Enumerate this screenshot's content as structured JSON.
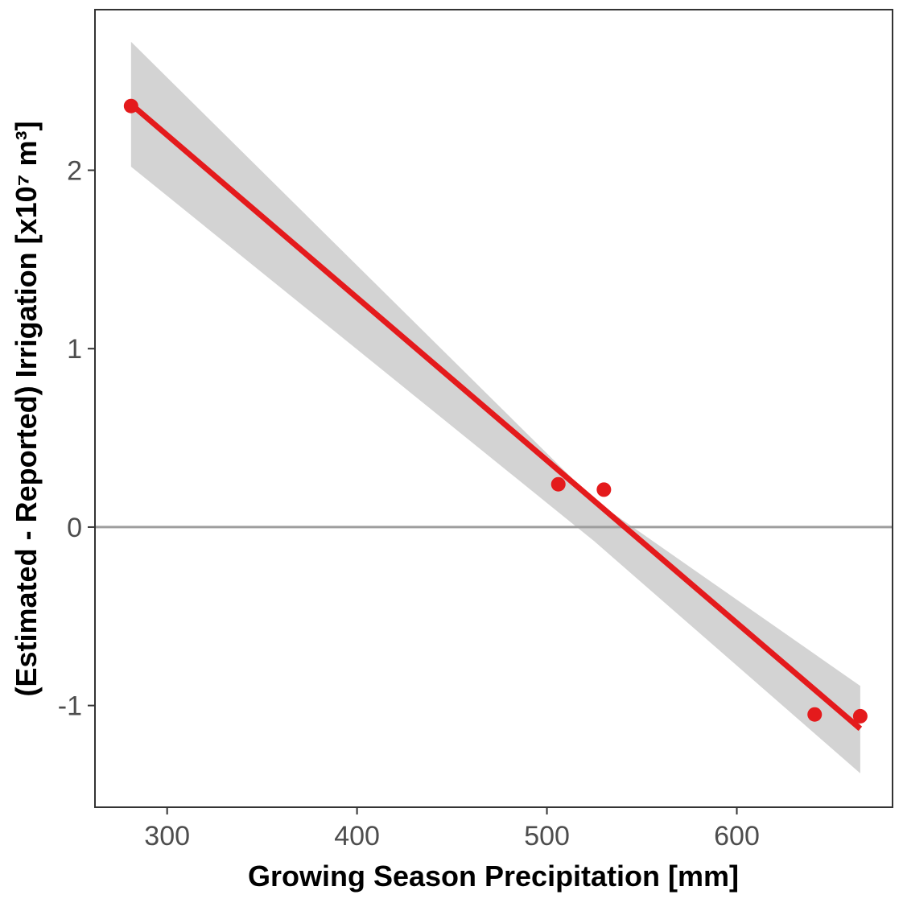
{
  "chart_data": {
    "type": "scatter",
    "title": "",
    "xlabel": "Growing Season Precipitation [mm]",
    "ylabel": "(Estimated - Reported) Irrigation [x10⁷ m³]",
    "xlim": [
      262,
      682
    ],
    "ylim": [
      -1.57,
      2.9
    ],
    "x_ticks": [
      300,
      400,
      500,
      600
    ],
    "y_ticks": [
      -1,
      0,
      1,
      2
    ],
    "x_tick_labels": [
      "300",
      "400",
      "500",
      "600"
    ],
    "y_tick_labels": [
      "-1",
      "0",
      "1",
      "2"
    ],
    "grid": false,
    "legend": "none",
    "reference_line_y": 0,
    "points": [
      {
        "x": 281,
        "y": 2.36
      },
      {
        "x": 506,
        "y": 0.24
      },
      {
        "x": 530,
        "y": 0.21
      },
      {
        "x": 641,
        "y": -1.05
      },
      {
        "x": 665,
        "y": -1.06
      }
    ],
    "fit_line": {
      "x": [
        281,
        665
      ],
      "y": [
        2.37,
        -1.13
      ]
    },
    "confidence_band": {
      "x": [
        281,
        525,
        665
      ],
      "lower": [
        2.02,
        -0.08,
        -1.38
      ],
      "upper": [
        2.72,
        0.15,
        -0.89
      ]
    },
    "colors": {
      "points": "#e41a1c",
      "fit_line": "#e41a1c",
      "band": "#d3d3d3",
      "reference_line": "#9e9e9e",
      "frame": "#333333",
      "tick_text": "#4d4d4d",
      "title_text": "#000000"
    }
  }
}
